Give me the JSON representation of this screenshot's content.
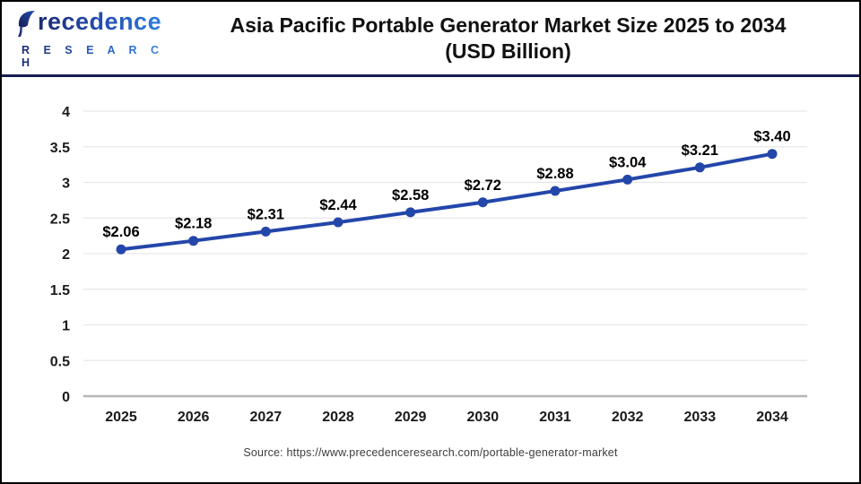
{
  "header": {
    "logo": {
      "name": "Precedence Research",
      "line1": "recedence",
      "line2": "R E S E A R C H"
    },
    "title_line1": "Asia Pacific Portable Generator Market Size 2025 to 2034",
    "title_line2": "(USD Billion)"
  },
  "chart_data": {
    "type": "line",
    "title": "Asia Pacific Portable Generator Market Size 2025 to 2034 (USD Billion)",
    "categories": [
      "2025",
      "2026",
      "2027",
      "2028",
      "2029",
      "2030",
      "2031",
      "2032",
      "2033",
      "2034"
    ],
    "values": [
      2.06,
      2.18,
      2.31,
      2.44,
      2.58,
      2.72,
      2.88,
      3.04,
      3.21,
      3.4
    ],
    "point_labels": [
      "$2.06",
      "$2.18",
      "$2.31",
      "$2.44",
      "$2.58",
      "$2.72",
      "$2.88",
      "$3.04",
      "$3.21",
      "$3.40"
    ],
    "xlabel": "",
    "ylabel": "",
    "ylim": [
      0,
      4
    ],
    "ytick_step": 0.5,
    "ytick_labels": [
      "0",
      "0.5",
      "1",
      "1.5",
      "2",
      "2.5",
      "3",
      "3.5",
      "4"
    ],
    "grid": true,
    "legend": "none",
    "line_color": "#2346aa",
    "marker": "circle",
    "marker_color": "#2346aa",
    "grid_color": "#e7e7e7",
    "axis_color": "#b5b5b5",
    "label_color": "#000000"
  },
  "footer": {
    "source": "Source: https://www.precedenceresearch.com/portable-generator-market"
  },
  "colors": {
    "header_separator": "#171c4f",
    "page_border": "#000000",
    "logo_dark": "#1b2a75",
    "logo_light": "#2f7de0"
  }
}
